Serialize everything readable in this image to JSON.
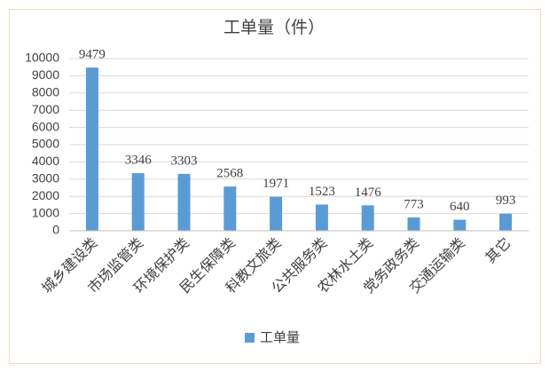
{
  "chart_data": {
    "type": "bar",
    "title": "工单量（件）",
    "categories": [
      "城乡建设类",
      "市场监管类",
      "环境保护类",
      "民生保障类",
      "科教文旅类",
      "公共服务类",
      "农林水土类",
      "党务政务类",
      "交通运输类",
      "其它"
    ],
    "series": [
      {
        "name": "工单量",
        "color": "#5b9bd5",
        "values": [
          9479,
          3346,
          3303,
          2568,
          1971,
          1523,
          1476,
          773,
          640,
          993
        ]
      }
    ],
    "ylim": [
      0,
      10000
    ],
    "yticks": [
      0,
      1000,
      2000,
      3000,
      4000,
      5000,
      6000,
      7000,
      8000,
      9000,
      10000
    ],
    "grid": true,
    "legend": "bottom"
  }
}
